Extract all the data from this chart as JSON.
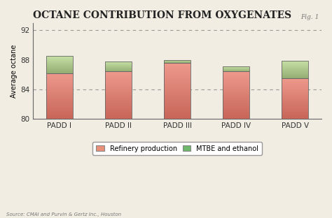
{
  "title": "Octane Contribution from Oxygenates",
  "fig_label": "Fig. 1",
  "ylabel": "Average octane",
  "categories": [
    "PADD I",
    "PADD II",
    "PADD III",
    "PADD IV",
    "PADD V"
  ],
  "refinery_values": [
    86.2,
    86.4,
    87.6,
    86.4,
    85.5
  ],
  "mtbe_values": [
    2.3,
    1.4,
    0.4,
    0.7,
    2.4
  ],
  "ylim": [
    80,
    93
  ],
  "yticks": [
    80,
    84,
    88,
    92
  ],
  "refinery_color": "#e8907a",
  "mtbe_color": "#6db86a",
  "bar_edge_color": "#666666",
  "dashed_line_color": "#999999",
  "dashed_lines": [
    84,
    92
  ],
  "bg_color": "#f2ede3",
  "source_text": "Source: CMAI and Purvin & Gertz Inc., Houston",
  "legend_labels": [
    "Refinery production",
    "MTBE and ethanol"
  ],
  "title_fontsize": 10,
  "axis_fontsize": 7,
  "tick_fontsize": 7.5,
  "bar_width": 0.45
}
